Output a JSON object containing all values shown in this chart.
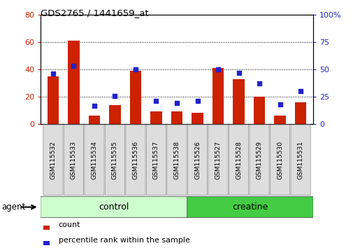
{
  "title": "GDS2765 / 1441659_at",
  "categories": [
    "GSM115532",
    "GSM115533",
    "GSM115534",
    "GSM115535",
    "GSM115536",
    "GSM115537",
    "GSM115538",
    "GSM115526",
    "GSM115527",
    "GSM115528",
    "GSM115529",
    "GSM115530",
    "GSM115531"
  ],
  "counts": [
    35,
    61,
    6,
    14,
    39,
    9,
    9,
    8,
    41,
    33,
    20,
    6,
    16
  ],
  "percentiles": [
    46,
    53,
    17,
    26,
    50,
    21,
    19,
    21,
    50,
    47,
    37,
    18,
    30
  ],
  "left_ylim": [
    0,
    80
  ],
  "right_ylim": [
    0,
    100
  ],
  "left_yticks": [
    0,
    20,
    40,
    60,
    80
  ],
  "right_yticks": [
    0,
    25,
    50,
    75,
    100
  ],
  "right_yticklabels": [
    "0",
    "25",
    "50",
    "75",
    "100%"
  ],
  "bar_color": "#cc2200",
  "dot_color": "#2222cc",
  "bar_width": 0.55,
  "n_control": 7,
  "n_creatine": 6,
  "control_color": "#ccffcc",
  "creatine_color": "#44cc44",
  "agent_label": "agent",
  "control_label": "control",
  "creatine_label": "creatine",
  "legend_count": "count",
  "legend_pct": "percentile rank within the sample"
}
